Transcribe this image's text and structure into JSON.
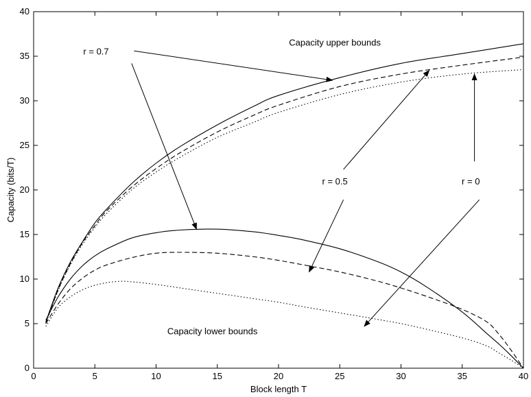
{
  "chart_data": {
    "type": "line",
    "xlabel": "Block length T",
    "ylabel": "Capacity (bits/T)",
    "xlim": [
      0,
      40
    ],
    "ylim": [
      0,
      40
    ],
    "xticks": [
      0,
      5,
      10,
      15,
      20,
      25,
      30,
      35,
      40
    ],
    "yticks": [
      0,
      5,
      10,
      15,
      20,
      25,
      30,
      35,
      40
    ],
    "grid": false,
    "line_color": "#000000",
    "series": [
      {
        "group": "upper",
        "r": "0.7",
        "style": "solid",
        "x": [
          1,
          2,
          3,
          4,
          5,
          6,
          8,
          10,
          12,
          15,
          18,
          20,
          25,
          30,
          35,
          40
        ],
        "y": [
          5.2,
          9.0,
          11.9,
          14.2,
          16.3,
          17.9,
          20.7,
          23.0,
          24.9,
          27.3,
          29.4,
          30.6,
          32.6,
          34.2,
          35.3,
          36.4
        ]
      },
      {
        "group": "upper",
        "r": "0.5",
        "style": "dashed",
        "x": [
          1,
          2,
          3,
          4,
          5,
          6,
          8,
          10,
          12,
          15,
          18,
          20,
          25,
          30,
          35,
          40
        ],
        "y": [
          5.1,
          8.8,
          11.7,
          14.1,
          16.0,
          17.7,
          20.3,
          22.4,
          24.2,
          26.5,
          28.4,
          29.5,
          31.6,
          33.0,
          34.0,
          34.9
        ]
      },
      {
        "group": "upper",
        "r": "0",
        "style": "dotted",
        "x": [
          1,
          2,
          3,
          4,
          5,
          6,
          8,
          10,
          12,
          15,
          18,
          20,
          25,
          30,
          35,
          40
        ],
        "y": [
          5.0,
          8.7,
          11.6,
          13.9,
          15.8,
          17.4,
          20.0,
          22.0,
          23.7,
          25.9,
          27.6,
          28.7,
          30.7,
          32.1,
          33.0,
          33.5
        ]
      },
      {
        "group": "lower",
        "r": "0.7",
        "style": "solid",
        "x": [
          1,
          2,
          3,
          4,
          5,
          6,
          8,
          10,
          12,
          15,
          18,
          20,
          22,
          25,
          28,
          30,
          32,
          35,
          37,
          38,
          39,
          40
        ],
        "y": [
          5.4,
          8.0,
          10.0,
          11.5,
          12.6,
          13.4,
          14.6,
          15.2,
          15.5,
          15.6,
          15.3,
          14.9,
          14.4,
          13.4,
          12.0,
          10.8,
          9.2,
          6.3,
          3.9,
          2.7,
          1.4,
          0.0
        ]
      },
      {
        "group": "lower",
        "r": "0.5",
        "style": "dashed",
        "x": [
          1,
          2,
          3,
          4,
          5,
          6,
          8,
          10,
          12,
          15,
          18,
          20,
          22,
          25,
          28,
          30,
          32,
          35,
          37,
          38,
          39,
          40
        ],
        "y": [
          5.0,
          7.2,
          8.9,
          10.1,
          11.0,
          11.6,
          12.4,
          12.9,
          13.0,
          12.9,
          12.5,
          12.1,
          11.6,
          10.8,
          9.8,
          9.0,
          8.1,
          6.6,
          5.2,
          3.8,
          2.0,
          0.0
        ]
      },
      {
        "group": "lower",
        "r": "0",
        "style": "dotted",
        "x": [
          1,
          2,
          3,
          4,
          5,
          6,
          7,
          8,
          10,
          12,
          15,
          18,
          20,
          22,
          25,
          28,
          30,
          32,
          35,
          37,
          38,
          39,
          40
        ],
        "y": [
          4.7,
          6.8,
          8.0,
          8.8,
          9.3,
          9.6,
          9.75,
          9.7,
          9.4,
          9.0,
          8.4,
          7.8,
          7.4,
          6.9,
          6.2,
          5.5,
          5.0,
          4.4,
          3.4,
          2.5,
          1.7,
          0.9,
          0.0
        ]
      }
    ],
    "annotations": [
      {
        "id": "upper",
        "text": "Capacity upper bounds",
        "x": 24.6,
        "y": 36.2
      },
      {
        "id": "lower",
        "text": "Capacity lower bounds",
        "x": 14.6,
        "y": 3.8
      },
      {
        "id": "r07",
        "text": "r = 0.7",
        "x": 5.1,
        "y": 35.2
      },
      {
        "id": "r05",
        "text": "r = 0.5",
        "x": 24.6,
        "y": 20.6
      },
      {
        "id": "r0",
        "text": "r = 0",
        "x": 35.7,
        "y": 20.6
      }
    ],
    "arrows": [
      {
        "from": [
          8.2,
          35.6
        ],
        "to": [
          24.4,
          32.3
        ]
      },
      {
        "from": [
          8.0,
          34.2
        ],
        "to": [
          13.3,
          15.6
        ]
      },
      {
        "from": [
          25.3,
          22.3
        ],
        "to": [
          32.3,
          33.4
        ]
      },
      {
        "from": [
          25.3,
          18.9
        ],
        "to": [
          22.5,
          10.8
        ]
      },
      {
        "from": [
          36.0,
          23.2
        ],
        "to": [
          36.0,
          33.0
        ]
      },
      {
        "from": [
          36.4,
          18.9
        ],
        "to": [
          27.0,
          4.7
        ]
      }
    ]
  }
}
